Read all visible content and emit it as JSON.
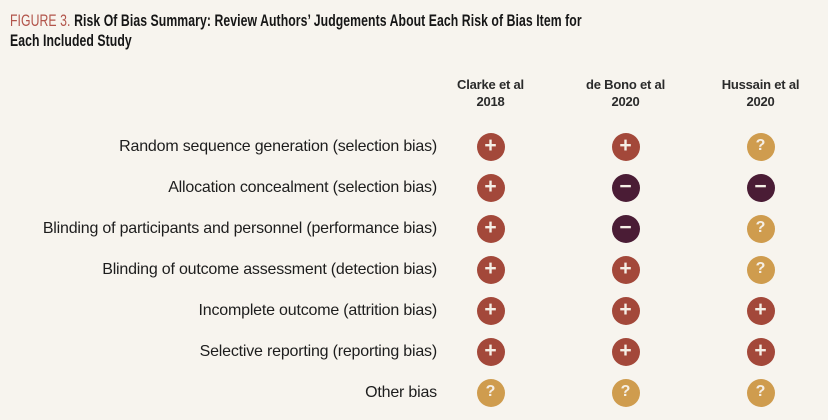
{
  "figure": {
    "label": "FIGURE 3.",
    "title": "Risk Of Bias Summary: Review Authors’ Judgements About Each Risk of Bias Item for Each Included Study"
  },
  "columns": [
    {
      "study": "Clarke et al",
      "year": "2018"
    },
    {
      "study": "de Bono et al",
      "year": "2020"
    },
    {
      "study": "Hussain et al",
      "year": "2020"
    }
  ],
  "rows": [
    {
      "label": "Random sequence generation (selection bias)",
      "judgements": [
        "plus",
        "plus",
        "question"
      ]
    },
    {
      "label": "Allocation concealment (selection bias)",
      "judgements": [
        "plus",
        "minus",
        "minus"
      ]
    },
    {
      "label": "Blinding of participants and personnel (performance bias)",
      "judgements": [
        "plus",
        "minus",
        "question"
      ]
    },
    {
      "label": "Blinding of outcome assessment (detection bias)",
      "judgements": [
        "plus",
        "plus",
        "question"
      ]
    },
    {
      "label": "Incomplete outcome (attrition bias)",
      "judgements": [
        "plus",
        "plus",
        "plus"
      ]
    },
    {
      "label": "Selective reporting (reporting bias)",
      "judgements": [
        "plus",
        "plus",
        "plus"
      ]
    },
    {
      "label": "Other bias",
      "judgements": [
        "question",
        "question",
        "question"
      ]
    }
  ],
  "symbols": {
    "plus": "+",
    "minus": "−",
    "question": "?"
  },
  "colors": {
    "background": "#F7F4EE",
    "figure_label": "#B2544A",
    "title_text": "#161616",
    "header_text": "#2B2B2B",
    "row_label_text": "#1D1D1D",
    "plus": "#A3483A",
    "minus": "#4A1C35",
    "question": "#CF9C4E",
    "symbol_text": "#F5EFE6"
  },
  "chart_data": {
    "type": "table",
    "title": "FIGURE 3. Risk Of Bias Summary: Review Authors’ Judgements About Each Risk of Bias Item for Each Included Study",
    "columns": [
      "Clarke et al 2018",
      "de Bono et al 2020",
      "Hussain et al 2020"
    ],
    "rows": [
      "Random sequence generation (selection bias)",
      "Allocation concealment (selection bias)",
      "Blinding of participants and personnel (performance bias)",
      "Blinding of outcome assessment (detection bias)",
      "Incomplete outcome (attrition bias)",
      "Selective reporting (reporting bias)",
      "Other bias"
    ],
    "values": [
      [
        "+",
        "+",
        "?"
      ],
      [
        "+",
        "−",
        "−"
      ],
      [
        "+",
        "−",
        "?"
      ],
      [
        "+",
        "+",
        "?"
      ],
      [
        "+",
        "+",
        "+"
      ],
      [
        "+",
        "+",
        "+"
      ],
      [
        "?",
        "?",
        "?"
      ]
    ],
    "legend_position": "none",
    "grid": false
  }
}
